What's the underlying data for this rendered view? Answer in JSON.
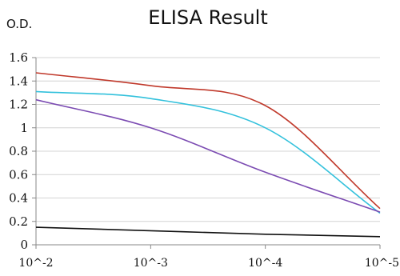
{
  "chart_data": {
    "type": "line",
    "title": "ELISA Result",
    "ylabel": "O.D.",
    "xlabel": "",
    "x_ticks": [
      "10^-2",
      "10^-3",
      "10^-4",
      "10^-5"
    ],
    "y_ticks": [
      "0",
      "0.2",
      "0.4",
      "0.6",
      "0.8",
      "1",
      "1.2",
      "1.4",
      "1.6"
    ],
    "ylim": [
      0,
      1.6
    ],
    "x_scale": "log (decreasing dilution)",
    "grid": "horizontal",
    "legend": "none",
    "series": [
      {
        "color": "#c0392b",
        "x": [
          "10^-2",
          "10^-3",
          "10^-4",
          "10^-5"
        ],
        "y": [
          1.47,
          1.36,
          1.19,
          0.31
        ]
      },
      {
        "color": "#33c1dc",
        "x": [
          "10^-2",
          "10^-3",
          "10^-4",
          "10^-5"
        ],
        "y": [
          1.31,
          1.25,
          1.0,
          0.27
        ]
      },
      {
        "color": "#7b4bb2",
        "x": [
          "10^-2",
          "10^-3",
          "10^-4",
          "10^-5"
        ],
        "y": [
          1.24,
          1.0,
          0.62,
          0.28
        ]
      },
      {
        "color": "#111111",
        "x": [
          "10^-2",
          "10^-3",
          "10^-4",
          "10^-5"
        ],
        "y": [
          0.15,
          0.12,
          0.09,
          0.07
        ]
      }
    ]
  }
}
